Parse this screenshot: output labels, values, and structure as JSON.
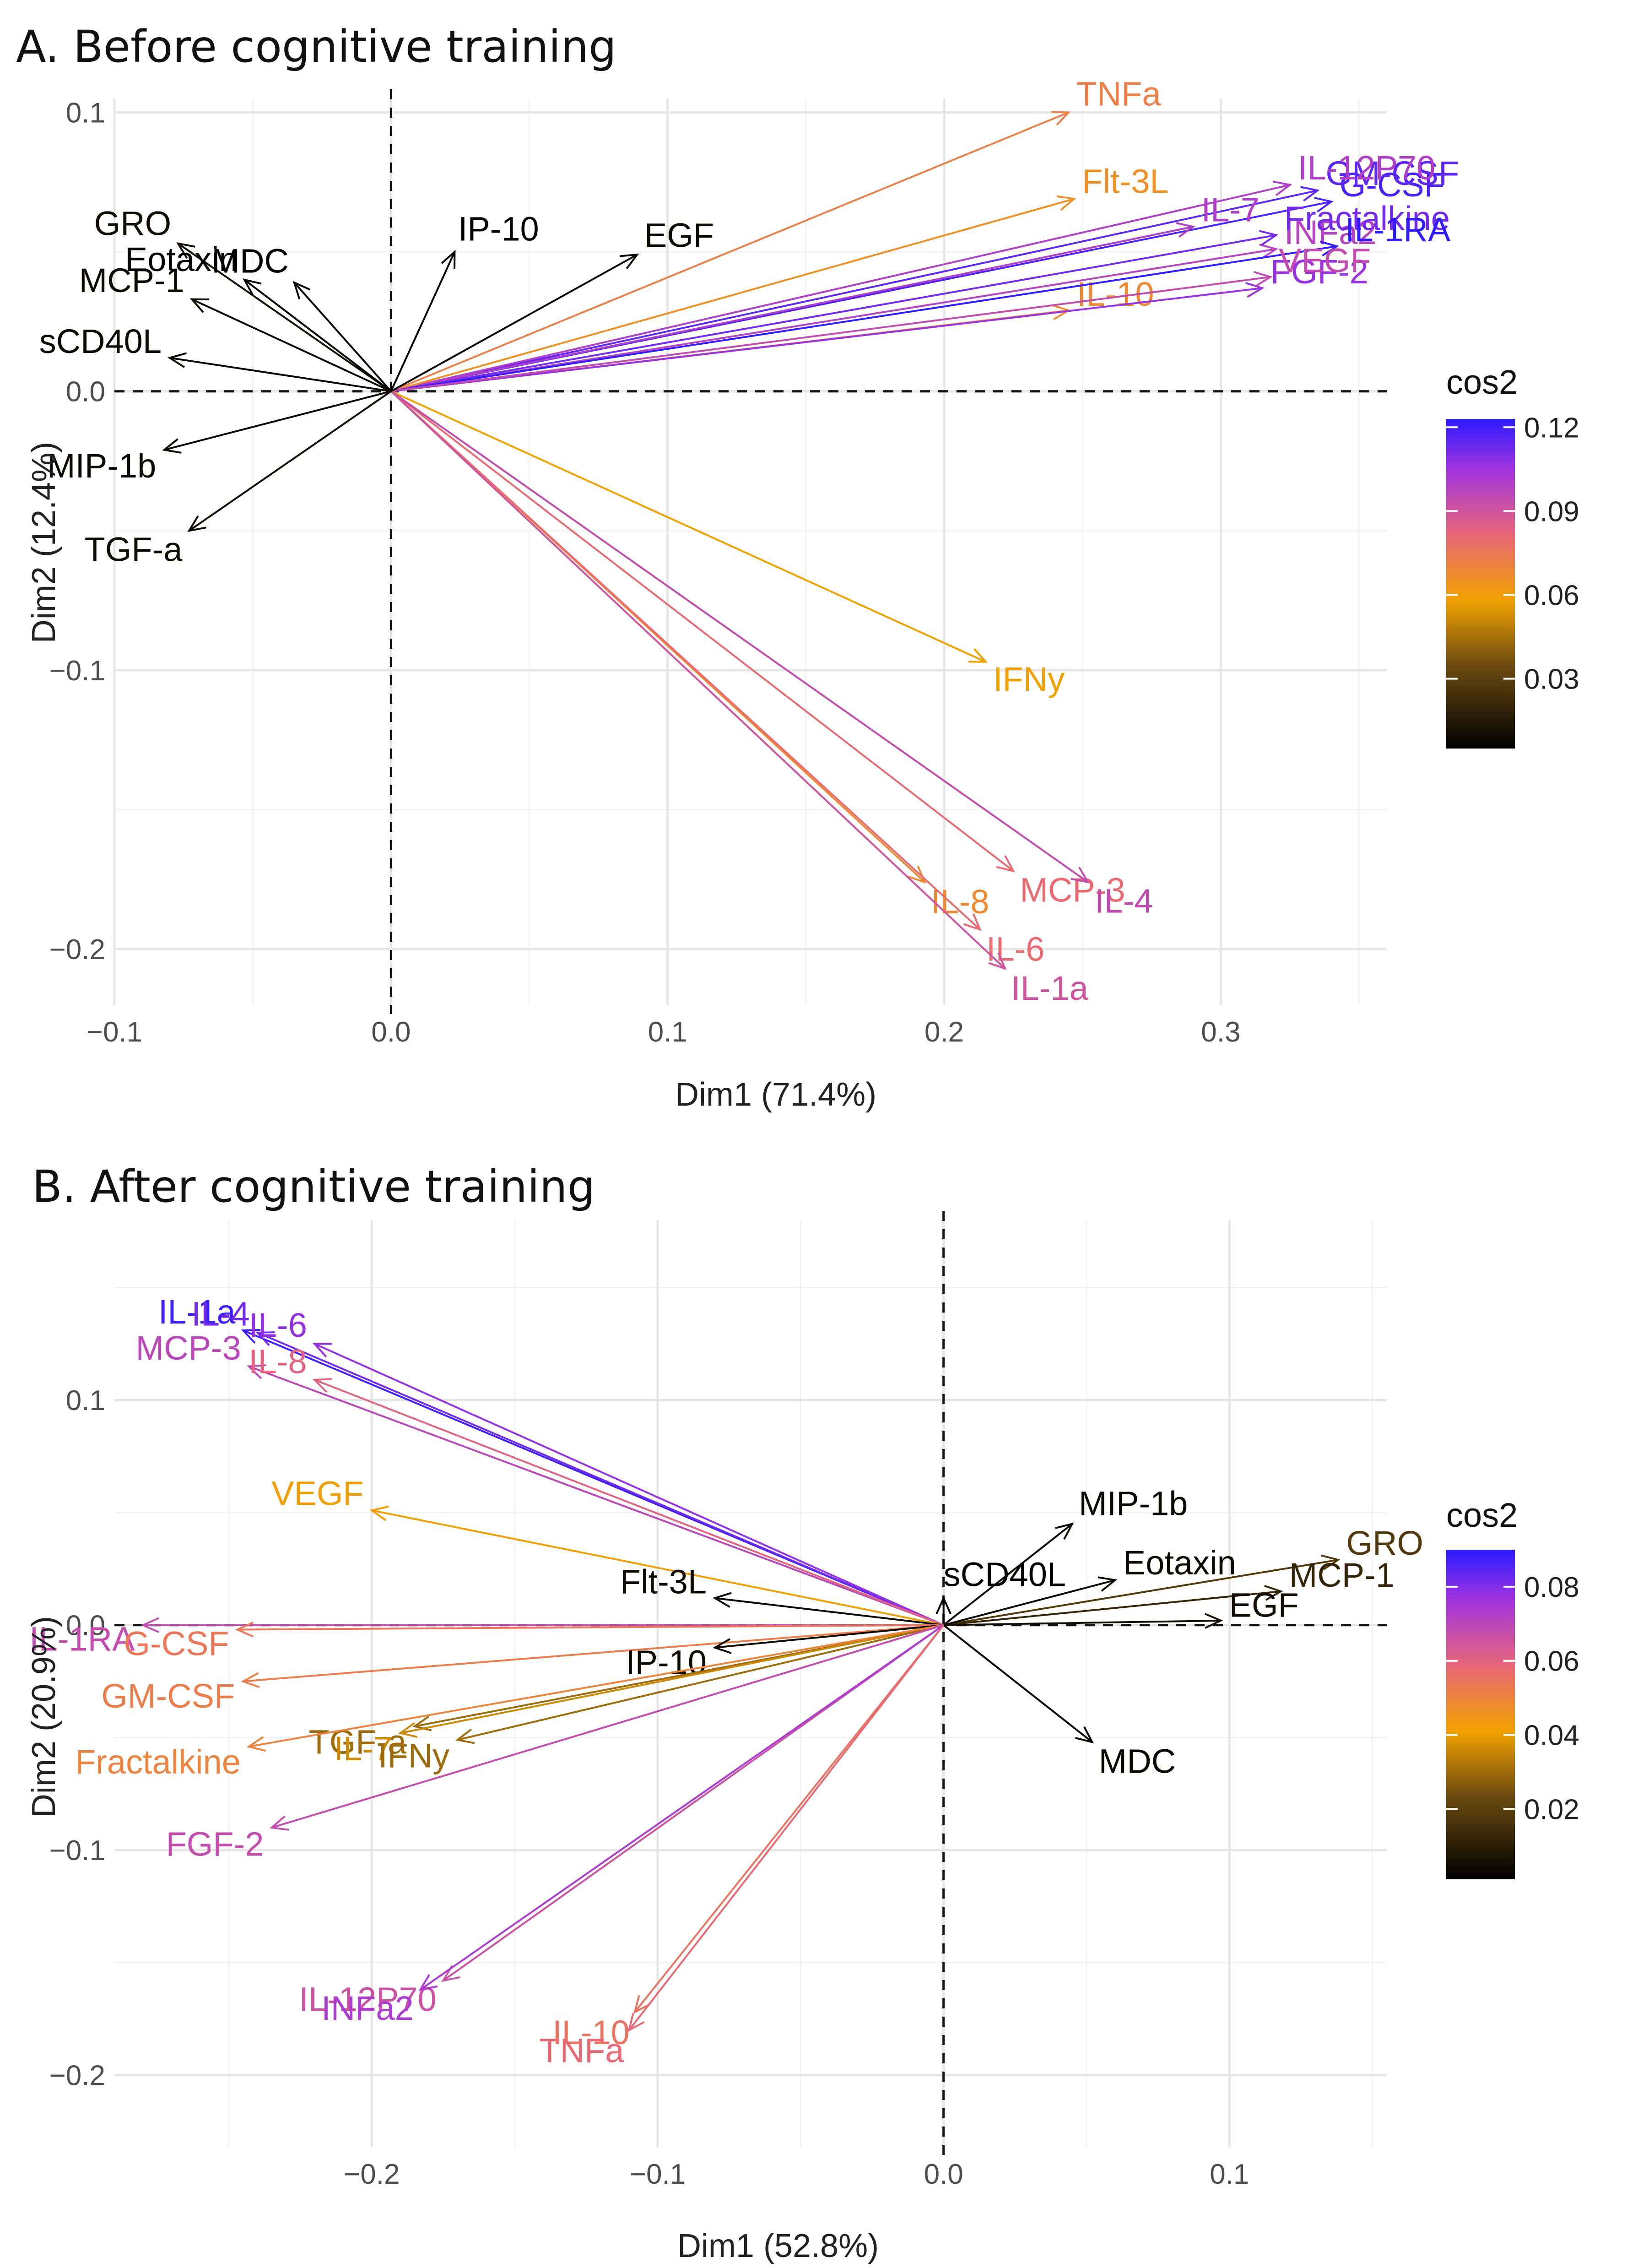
{
  "chart_data": [
    {
      "type": "scatter",
      "subtype": "pca-variable-biplot",
      "title": "A. Before cognitive training",
      "xlabel": "Dim1 (71.4%)",
      "ylabel": "Dim2 (12.4%)",
      "xlim": [
        -0.1,
        0.36
      ],
      "ylim": [
        -0.22,
        0.105
      ],
      "xticks": [
        -0.1,
        0.0,
        0.1,
        0.2,
        0.3
      ],
      "yticks": [
        -0.2,
        -0.1,
        0.0,
        0.1
      ],
      "xtick_labels": [
        "−0.1",
        "0.0",
        "0.1",
        "0.2",
        "0.3"
      ],
      "ytick_labels": [
        "−0.2",
        "−0.1",
        "0.0",
        "0.1"
      ],
      "grid": true,
      "legend": {
        "title": "cos2",
        "placement": "right",
        "min": 0.005,
        "max": 0.123,
        "ticks": [
          0.03,
          0.06,
          0.09,
          0.12
        ],
        "tick_labels": [
          "0.03",
          "0.06",
          "0.09",
          "0.12"
        ]
      },
      "variables": [
        {
          "name": "TNFa",
          "x": 0.245,
          "y": 0.1,
          "cos2": 0.072,
          "label_dx": -0.018,
          "label_dy": 0.003
        },
        {
          "name": "G-CSF",
          "x": 0.34,
          "y": 0.068,
          "cos2": 0.118
        },
        {
          "name": "GM-CSF",
          "x": 0.335,
          "y": 0.072,
          "cos2": 0.115
        },
        {
          "name": "IL-12P70",
          "x": 0.325,
          "y": 0.074,
          "cos2": 0.1
        },
        {
          "name": "Flt-3L",
          "x": 0.247,
          "y": 0.069,
          "cos2": 0.065
        },
        {
          "name": "IL-7",
          "x": 0.29,
          "y": 0.059,
          "cos2": 0.1
        },
        {
          "name": "INFa2",
          "x": 0.32,
          "y": 0.051,
          "cos2": 0.098
        },
        {
          "name": "IL-10",
          "x": 0.245,
          "y": 0.029,
          "cos2": 0.068
        },
        {
          "name": "Fractalkine",
          "x": 0.32,
          "y": 0.056,
          "cos2": 0.112
        },
        {
          "name": "IL-1RA",
          "x": 0.342,
          "y": 0.052,
          "cos2": 0.122
        },
        {
          "name": "FGF-2",
          "x": 0.315,
          "y": 0.037,
          "cos2": 0.106
        },
        {
          "name": "VEGF",
          "x": 0.318,
          "y": 0.041,
          "cos2": 0.094
        },
        {
          "name": "IFNy",
          "x": 0.215,
          "y": -0.097,
          "cos2": 0.058
        },
        {
          "name": "MCP-3",
          "x": 0.225,
          "y": -0.172,
          "cos2": 0.08
        },
        {
          "name": "IL-4",
          "x": 0.252,
          "y": -0.176,
          "cos2": 0.094
        },
        {
          "name": "IL-8",
          "x": 0.193,
          "y": -0.176,
          "cos2": 0.068
        },
        {
          "name": "IL-6",
          "x": 0.213,
          "y": -0.193,
          "cos2": 0.08
        },
        {
          "name": "IL-1a",
          "x": 0.222,
          "y": -0.207,
          "cos2": 0.09
        },
        {
          "name": "GRO",
          "x": -0.077,
          "y": 0.053,
          "cos2": 0.01
        },
        {
          "name": "MDC",
          "x": -0.035,
          "y": 0.039,
          "cos2": 0.006
        },
        {
          "name": "IP-10",
          "x": 0.023,
          "y": 0.05,
          "cos2": 0.006
        },
        {
          "name": "EGF",
          "x": 0.089,
          "y": 0.049,
          "cos2": 0.008
        },
        {
          "name": "MCP-1",
          "x": -0.072,
          "y": 0.033,
          "cos2": 0.008
        },
        {
          "name": "Eotaxin",
          "x": -0.053,
          "y": 0.04,
          "cos2": 0.006
        },
        {
          "name": "sCD40L",
          "x": -0.08,
          "y": 0.012,
          "cos2": 0.008
        },
        {
          "name": "MIP-1b",
          "x": -0.082,
          "y": -0.021,
          "cos2": 0.008
        },
        {
          "name": "TGF-a",
          "x": -0.073,
          "y": -0.05,
          "cos2": 0.009
        }
      ]
    },
    {
      "type": "scatter",
      "subtype": "pca-variable-biplot",
      "title": "B. After cognitive training",
      "xlabel": "Dim1 (52.8%)",
      "ylabel": "Dim2 (20.9%)",
      "xlim": [
        -0.29,
        0.155
      ],
      "ylim": [
        -0.232,
        0.18
      ],
      "xticks": [
        -0.2,
        -0.1,
        0.0,
        0.1
      ],
      "yticks": [
        -0.2,
        -0.1,
        0.0,
        0.1
      ],
      "xtick_labels": [
        "−0.2",
        "−0.1",
        "0.0",
        "0.1"
      ],
      "ytick_labels": [
        "−0.2",
        "−0.1",
        "0.0",
        "0.1"
      ],
      "grid": true,
      "legend": {
        "title": "cos2",
        "placement": "right",
        "min": 0.001,
        "max": 0.09,
        "ticks": [
          0.02,
          0.04,
          0.06,
          0.08
        ],
        "tick_labels": [
          "0.02",
          "0.04",
          "0.06",
          "0.08"
        ]
      },
      "variables": [
        {
          "name": "IL-1a",
          "x": -0.245,
          "y": 0.131,
          "cos2": 0.088
        },
        {
          "name": "IL-4",
          "x": -0.24,
          "y": 0.13,
          "cos2": 0.082
        },
        {
          "name": "IL-6",
          "x": -0.22,
          "y": 0.125,
          "cos2": 0.078
        },
        {
          "name": "MCP-3",
          "x": -0.243,
          "y": 0.115,
          "cos2": 0.07
        },
        {
          "name": "IL-8",
          "x": -0.22,
          "y": 0.109,
          "cos2": 0.06
        },
        {
          "name": "VEGF",
          "x": -0.2,
          "y": 0.051,
          "cos2": 0.042
        },
        {
          "name": "MIP-1b",
          "x": 0.045,
          "y": 0.045,
          "cos2": 0.003
        },
        {
          "name": "GRO",
          "x": 0.138,
          "y": 0.029,
          "cos2": 0.018
        },
        {
          "name": "MCP-1",
          "x": 0.118,
          "y": 0.015,
          "cos2": 0.012
        },
        {
          "name": "Flt-3L",
          "x": -0.08,
          "y": 0.012,
          "cos2": 0.004
        },
        {
          "name": "sCD40L",
          "x": 0.0,
          "y": 0.012,
          "cos2": 0.002
        },
        {
          "name": "EGF",
          "x": 0.097,
          "y": 0.002,
          "cos2": 0.005
        },
        {
          "name": "Eotaxin",
          "x": 0.06,
          "y": 0.02,
          "cos2": 0.004
        },
        {
          "name": "IL-1RA",
          "x": -0.28,
          "y": 0.0,
          "cos2": 0.068
        },
        {
          "name": "G-CSF",
          "x": -0.247,
          "y": -0.002,
          "cos2": 0.054
        },
        {
          "name": "GM-CSF",
          "x": -0.245,
          "y": -0.025,
          "cos2": 0.052
        },
        {
          "name": "IP-10",
          "x": -0.08,
          "y": -0.01,
          "cos2": 0.004
        },
        {
          "name": "MDC",
          "x": 0.052,
          "y": -0.052,
          "cos2": 0.003
        },
        {
          "name": "TGF-a",
          "x": -0.185,
          "y": -0.045,
          "cos2": 0.03
        },
        {
          "name": "IL-7",
          "x": -0.19,
          "y": -0.048,
          "cos2": 0.036
        },
        {
          "name": "IFNy",
          "x": -0.17,
          "y": -0.051,
          "cos2": 0.03
        },
        {
          "name": "Fractalkine",
          "x": -0.243,
          "y": -0.054,
          "cos2": 0.05
        },
        {
          "name": "FGF-2",
          "x": -0.235,
          "y": -0.09,
          "cos2": 0.068
        },
        {
          "name": "IL-12P70",
          "x": -0.175,
          "y": -0.158,
          "cos2": 0.066
        },
        {
          "name": "INFa2",
          "x": -0.183,
          "y": -0.162,
          "cos2": 0.074
        },
        {
          "name": "IL-10",
          "x": -0.108,
          "y": -0.172,
          "cos2": 0.055
        },
        {
          "name": "TNFa",
          "x": -0.11,
          "y": -0.18,
          "cos2": 0.058
        }
      ]
    }
  ]
}
